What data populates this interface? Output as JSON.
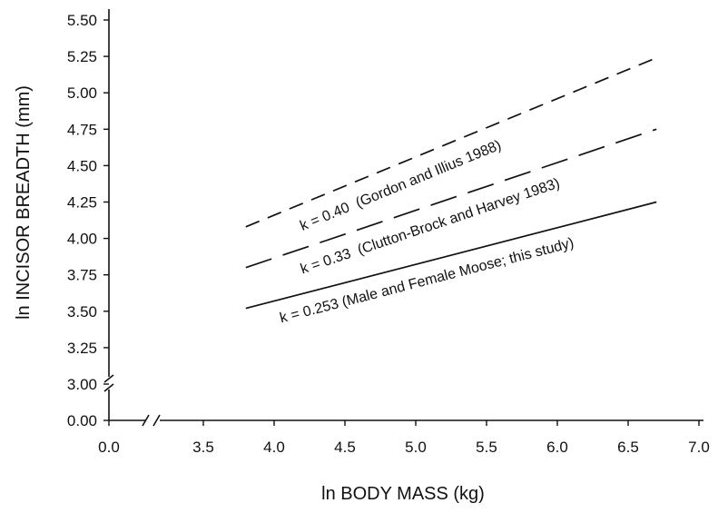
{
  "chart_data": {
    "type": "line",
    "xlabel": "ln BODY MASS (kg)",
    "ylabel": "ln INCISOR BREADTH (mm)",
    "x_ticks": [
      "0.0",
      "3.5",
      "4.0",
      "4.5",
      "5.0",
      "5.5",
      "6.0",
      "6.5",
      "7.0"
    ],
    "y_ticks": [
      "0.00",
      "3.00",
      "3.25",
      "3.50",
      "3.75",
      "4.00",
      "4.25",
      "4.50",
      "4.75",
      "5.00",
      "5.25",
      "5.50"
    ],
    "xlim": [
      3.25,
      7.0
    ],
    "ylim": [
      3.0,
      5.5
    ],
    "axis_breaks": true,
    "grid": false,
    "series": [
      {
        "annotation": "k = 0.40  (Gordon and Illius 1988)",
        "style": "dashed-short",
        "x": [
          3.8,
          6.7
        ],
        "y": [
          4.08,
          5.24
        ]
      },
      {
        "annotation": "k = 0.33  (Clutton-Brock and Harvey 1983)",
        "style": "dashed-long",
        "x": [
          3.8,
          6.7
        ],
        "y": [
          3.8,
          4.75
        ]
      },
      {
        "annotation": "k = 0.253 (Male and Female Moose; this study)",
        "style": "solid",
        "x": [
          3.8,
          6.7
        ],
        "y": [
          3.52,
          4.25
        ]
      }
    ]
  }
}
